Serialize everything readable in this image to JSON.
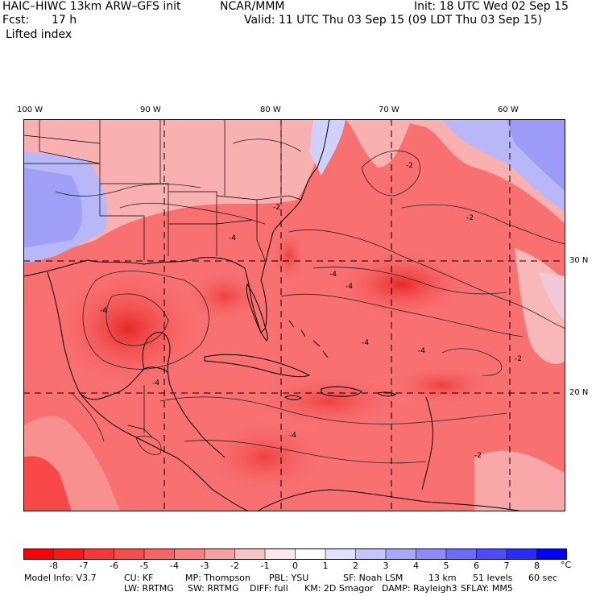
{
  "header": {
    "model": "HAIC–HIWC 13km ARW–GFS init",
    "center": "NCAR/MMM",
    "init": "Init: 18 UTC Wed 02 Sep 15",
    "fcst_label": "Fcst:",
    "fcst_value": "17 h",
    "valid": "Valid: 11 UTC Thu 03 Sep 15 (09 LDT Thu 03 Sep 15)",
    "field": "Lifted index"
  },
  "map": {
    "lon_labels": [
      "100 W",
      "90 W",
      "80 W",
      "70 W",
      "60 W"
    ],
    "lat_labels": [
      "30 N",
      "20 N"
    ],
    "contour_labels": [
      "-2",
      "-4",
      "-2",
      "-4",
      "-4",
      "-4",
      "-2",
      "-4",
      "-4",
      "-2",
      "-4",
      "-2",
      "-4"
    ]
  },
  "colorbar": {
    "labels": [
      "-8",
      "-7",
      "-6",
      "-5",
      "-4",
      "-3",
      "-2",
      "-1",
      "0",
      "1",
      "2",
      "3",
      "4",
      "5",
      "6",
      "7",
      "8"
    ],
    "unit": "°C",
    "colors": [
      "#ff0000",
      "#f81818",
      "#f83838",
      "#f84c4c",
      "#f86464",
      "#f88080",
      "#f8a0a0",
      "#f8c4c4",
      "#ffe8e8",
      "#ffffff",
      "#e0e0ff",
      "#c4c4ff",
      "#a8a8ff",
      "#8c8cff",
      "#6c6cff",
      "#4c4cff",
      "#2a2aff",
      "#0000ff"
    ]
  },
  "footer": {
    "line1": [
      {
        "label": "Model Info: V3.7"
      },
      {
        "label": "CU: KF"
      },
      {
        "label": "MP: Thompson"
      },
      {
        "label": "PBL: YSU"
      },
      {
        "label": "SF: Noah LSM"
      },
      {
        "label": "13 km"
      },
      {
        "label": "51 levels"
      },
      {
        "label": "60 sec"
      }
    ],
    "line2": [
      {
        "label": "LW: RRTMG"
      },
      {
        "label": "SW: RRTMG"
      },
      {
        "label": "DIFF: full"
      },
      {
        "label": "KM: 2D Smagor"
      },
      {
        "label": "DAMP: Rayleigh3"
      },
      {
        "label": "SFLAY: MM5"
      }
    ]
  }
}
